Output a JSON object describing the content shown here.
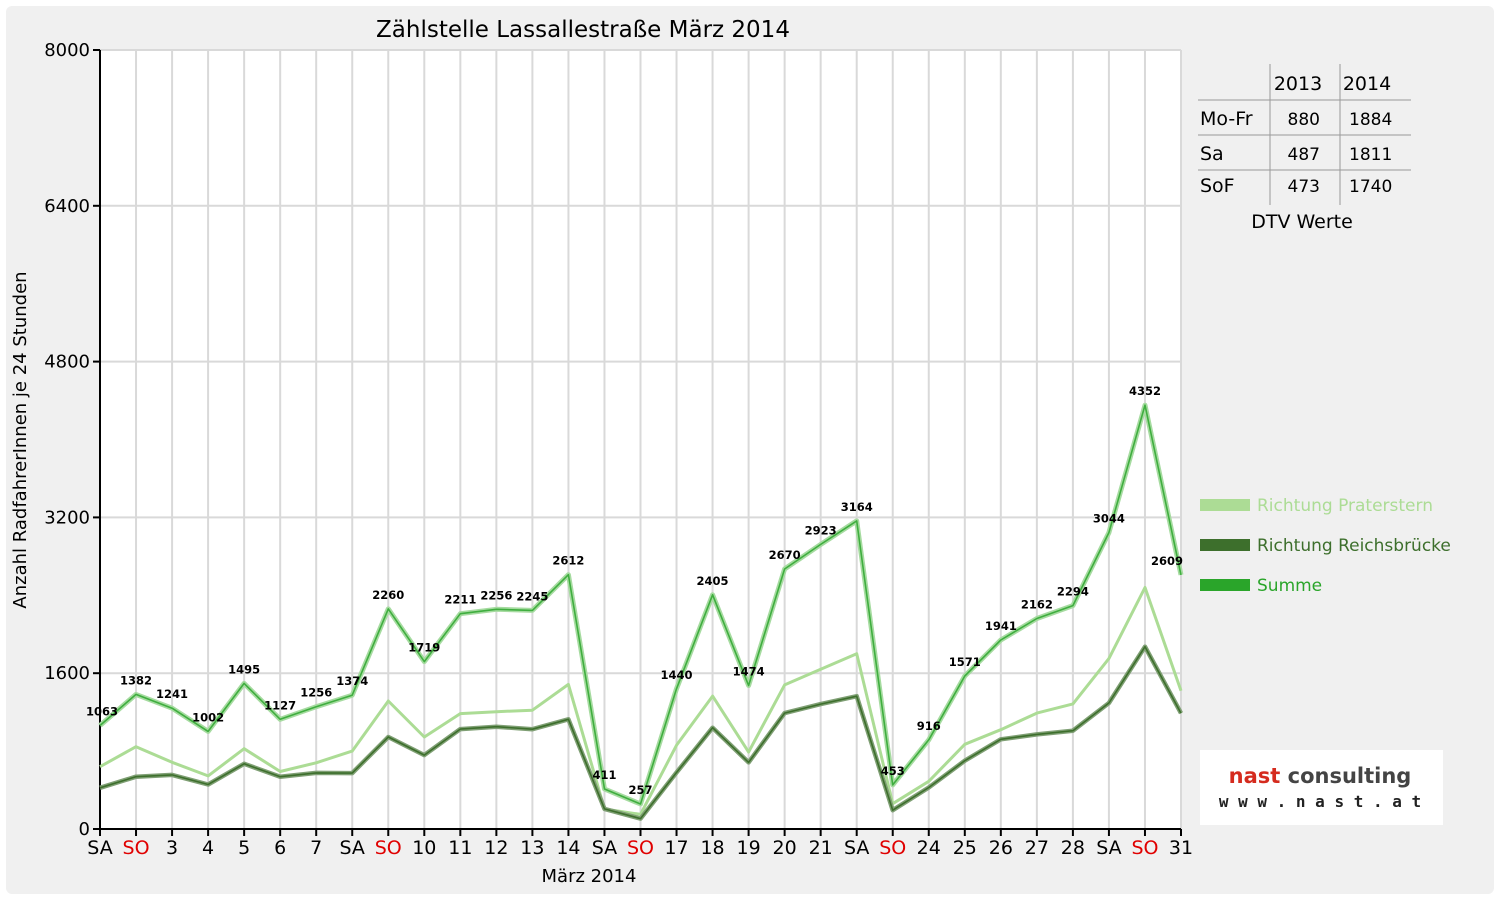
{
  "chart_data": {
    "type": "line",
    "title": "Zählstelle Lassallestraße März 2014",
    "xlabel": "März 2014",
    "ylabel": "Anzahl RadfahrerInnen je 24 Stunden",
    "ylim": [
      0,
      8000
    ],
    "yticks": [
      "0",
      "1600",
      "3200",
      "4800",
      "6400",
      "8000"
    ],
    "grid": true,
    "legend_position": "right",
    "categories": [
      "SA",
      "SO",
      "3",
      "4",
      "5",
      "6",
      "7",
      "SA",
      "SO",
      "10",
      "11",
      "12",
      "13",
      "14",
      "SA",
      "SO",
      "17",
      "18",
      "19",
      "20",
      "21",
      "SA",
      "SO",
      "24",
      "25",
      "26",
      "27",
      "28",
      "SA",
      "SO",
      "31"
    ],
    "sunday_indices": [
      1,
      8,
      15,
      22,
      29
    ],
    "series": [
      {
        "name": "Richtung Praterstern",
        "color": "#acdc95",
        "values": [
          640,
          845,
          685,
          545,
          825,
          590,
          680,
          800,
          1315,
          945,
          1185,
          1205,
          1220,
          1485,
          205,
          150,
          860,
          1365,
          790,
          1480,
          1640,
          1800,
          260,
          490,
          870,
          1020,
          1190,
          1285,
          1750,
          2480,
          1420
        ]
      },
      {
        "name": "Richtung Reichsbrücke",
        "color": "#3d6f2c",
        "values": [
          423,
          537,
          556,
          457,
          670,
          537,
          576,
          574,
          945,
          759,
          1026,
          1051,
          1025,
          1127,
          206,
          107,
          580,
          1040,
          684,
          1190,
          1283,
          1364,
          193,
          426,
          701,
          921,
          972,
          1009,
          1294,
          1872,
          1189
        ]
      },
      {
        "name": "Summe",
        "color": "#3fae3f",
        "values": [
          1063,
          1382,
          1241,
          1002,
          1495,
          1127,
          1256,
          1374,
          2260,
          1719,
          2211,
          2256,
          2245,
          2612,
          411,
          257,
          1440,
          2405,
          1474,
          2670,
          2923,
          3164,
          453,
          916,
          1571,
          1941,
          2162,
          2294,
          3044,
          4352,
          2609
        ]
      }
    ]
  },
  "dtv_table": {
    "caption": "DTV Werte",
    "col_2013": "2013",
    "col_2014": "2014",
    "rows": [
      {
        "label": "Mo-Fr",
        "v2013": "880",
        "v2014": "1884"
      },
      {
        "label": "Sa",
        "v2013": "487",
        "v2014": "1811"
      },
      {
        "label": "SoF",
        "v2013": "473",
        "v2014": "1740"
      }
    ]
  },
  "logo": {
    "name": "nast consulting",
    "url": "w w w . n a s t . a t"
  },
  "colors": {
    "sunday_label": "#e00000",
    "logo_nast": "#d52b1e",
    "logo_consulting": "#444444"
  }
}
